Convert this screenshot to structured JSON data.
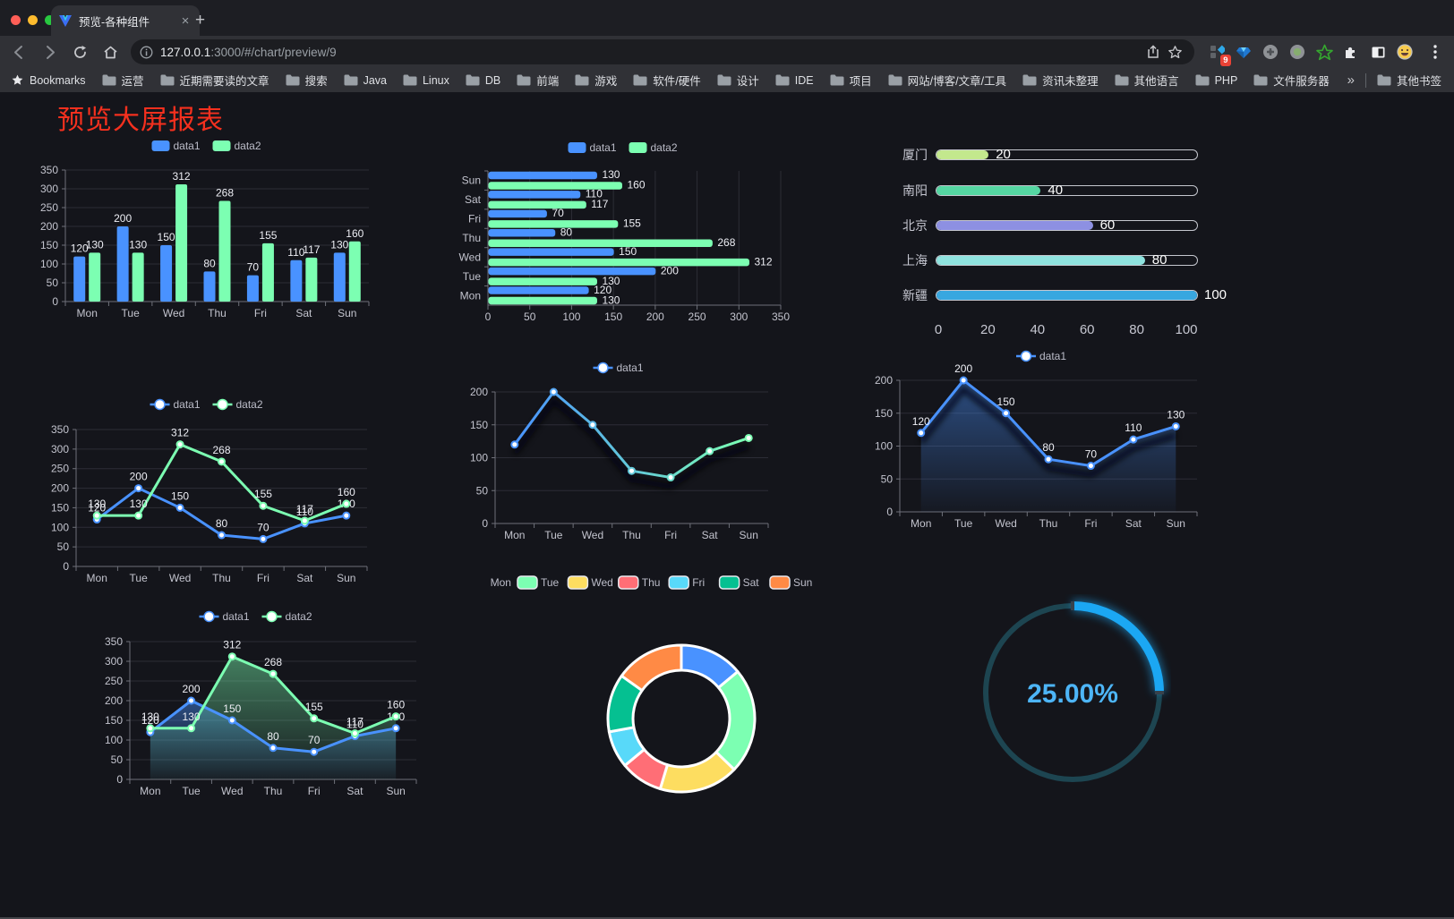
{
  "browser": {
    "tab": {
      "title": "预览-各种组件",
      "close_icon": "×",
      "new_tab_icon": "+"
    },
    "url": {
      "host": "127.0.0.1",
      "rest": ":3000/#/chart/preview/9"
    },
    "bookmarks_label": "Bookmarks",
    "bookmarks": [
      "运营",
      "近期需要读的文章",
      "搜索",
      "Java",
      "Linux",
      "DB",
      "前端",
      "游戏",
      "软件/硬件",
      "设计",
      "IDE",
      "项目",
      "网站/博客/文章/工具",
      "资讯未整理",
      "其他语言",
      "PHP",
      "文件服务器"
    ],
    "overflow_icon": "»",
    "other_bookmarks": "其他书签",
    "extension_badge": "9",
    "extension_icons": [
      "stats-grid-icon",
      "gem-icon",
      "pattern-circle-icon",
      "record-circle-icon",
      "green-star-icon",
      "puzzle-icon",
      "split-square-icon",
      "emoji-face-icon"
    ]
  },
  "page": {
    "title": "预览大屏报表",
    "title_color": "#f5301e"
  },
  "palette": {
    "blue": "#4992ff",
    "green": "#7cffb2",
    "yellow": "#fddd60",
    "red": "#ff6e76",
    "cyan": "#58d9f9",
    "teal": "#05c091",
    "orange": "#ff8a45"
  },
  "chart_data": [
    {
      "id": "bar-chart",
      "type": "bar",
      "categories": [
        "Mon",
        "Tue",
        "Wed",
        "Thu",
        "Fri",
        "Sat",
        "Sun"
      ],
      "series": [
        {
          "name": "data1",
          "color": "#4992ff",
          "values": [
            120,
            200,
            150,
            80,
            70,
            110,
            130
          ]
        },
        {
          "name": "data2",
          "color": "#7cffb2",
          "values": [
            130,
            130,
            312,
            268,
            155,
            117,
            160
          ]
        }
      ],
      "ylim": [
        0,
        350
      ],
      "ytick": 50,
      "legend_position": "top",
      "grid": true
    },
    {
      "id": "hbar-chart",
      "type": "hbar",
      "categories": [
        "Mon",
        "Tue",
        "Wed",
        "Thu",
        "Fri",
        "Sat",
        "Sun"
      ],
      "display_order_top_to_bottom": [
        "Sun",
        "Sat",
        "Fri",
        "Thu",
        "Wed",
        "Tue",
        "Mon"
      ],
      "series": [
        {
          "name": "data1",
          "color": "#4992ff",
          "values": [
            120,
            200,
            150,
            80,
            70,
            110,
            130
          ]
        },
        {
          "name": "data2",
          "color": "#7cffb2",
          "values": [
            130,
            130,
            312,
            268,
            155,
            117,
            160
          ]
        }
      ],
      "xlim": [
        0,
        350
      ],
      "xtick": 50,
      "legend_position": "top",
      "grid": true
    },
    {
      "id": "progress-bars",
      "type": "bar",
      "orientation": "horizontal-progress",
      "rows": [
        {
          "label": "厦门",
          "value": 20,
          "color": "#c3e88d"
        },
        {
          "label": "南阳",
          "value": 40,
          "color": "#55d6a2"
        },
        {
          "label": "北京",
          "value": 60,
          "color": "#8d90e2"
        },
        {
          "label": "上海",
          "value": 80,
          "color": "#8fe3df"
        },
        {
          "label": "新疆",
          "value": 100,
          "color": "#38a7e0"
        }
      ],
      "xlim": [
        0,
        100
      ],
      "ticks": [
        0,
        20,
        40,
        60,
        80,
        100
      ]
    },
    {
      "id": "line-chart",
      "type": "line",
      "categories": [
        "Mon",
        "Tue",
        "Wed",
        "Thu",
        "Fri",
        "Sat",
        "Sun"
      ],
      "series": [
        {
          "name": "data1",
          "color": "#4992ff",
          "values": [
            120,
            200,
            150,
            80,
            70,
            110,
            130
          ]
        },
        {
          "name": "data2",
          "color": "#7cffb2",
          "values": [
            130,
            130,
            312,
            268,
            155,
            117,
            160
          ]
        }
      ],
      "ylim": [
        0,
        350
      ],
      "ytick": 50,
      "show_labels": true,
      "legend_position": "top"
    },
    {
      "id": "gradient-line-chart",
      "type": "line",
      "categories": [
        "Mon",
        "Tue",
        "Wed",
        "Thu",
        "Fri",
        "Sat",
        "Sun"
      ],
      "series": [
        {
          "name": "data1",
          "gradient": [
            "#4992ff",
            "#7cffb2"
          ],
          "values": [
            120,
            200,
            150,
            80,
            70,
            110,
            130
          ]
        }
      ],
      "ylim": [
        0,
        200
      ],
      "ytick": 50,
      "show_labels": false,
      "shadow": true,
      "legend_position": "top"
    },
    {
      "id": "area-line-chart",
      "type": "line",
      "categories": [
        "Mon",
        "Tue",
        "Wed",
        "Thu",
        "Fri",
        "Sat",
        "Sun"
      ],
      "series": [
        {
          "name": "data1",
          "color": "#4992ff",
          "area": true,
          "values": [
            120,
            200,
            150,
            80,
            70,
            110,
            130
          ]
        }
      ],
      "ylim": [
        0,
        200
      ],
      "ytick": 50,
      "show_labels": true,
      "shadow": true,
      "legend_position": "top"
    },
    {
      "id": "two-area-line-chart",
      "type": "line",
      "categories": [
        "Mon",
        "Tue",
        "Wed",
        "Thu",
        "Fri",
        "Sat",
        "Sun"
      ],
      "series": [
        {
          "name": "data1",
          "color": "#4992ff",
          "area": true,
          "values": [
            120,
            200,
            150,
            80,
            70,
            110,
            130
          ]
        },
        {
          "name": "data2",
          "color": "#7cffb2",
          "area": true,
          "values": [
            130,
            130,
            312,
            268,
            155,
            117,
            160
          ]
        }
      ],
      "ylim": [
        0,
        350
      ],
      "ytick": 50,
      "show_labels": true,
      "legend_position": "top"
    },
    {
      "id": "donut-chart",
      "type": "pie",
      "categories": [
        "Mon",
        "Tue",
        "Wed",
        "Thu",
        "Fri",
        "Sat",
        "Sun"
      ],
      "values": [
        120,
        200,
        150,
        80,
        70,
        110,
        130
      ],
      "colors": [
        "#4992ff",
        "#7cffb2",
        "#fddd60",
        "#ff6e76",
        "#58d9f9",
        "#05c091",
        "#ff8a45"
      ],
      "inner_radius_ratio": 0.65,
      "legend_position": "top"
    },
    {
      "id": "gauge-chart",
      "type": "gauge",
      "percent": 25,
      "value_label": "25.00%",
      "arc_color": "#1ba7f3",
      "track_color": "#1d4551",
      "text_color": "#4db5f7"
    }
  ]
}
